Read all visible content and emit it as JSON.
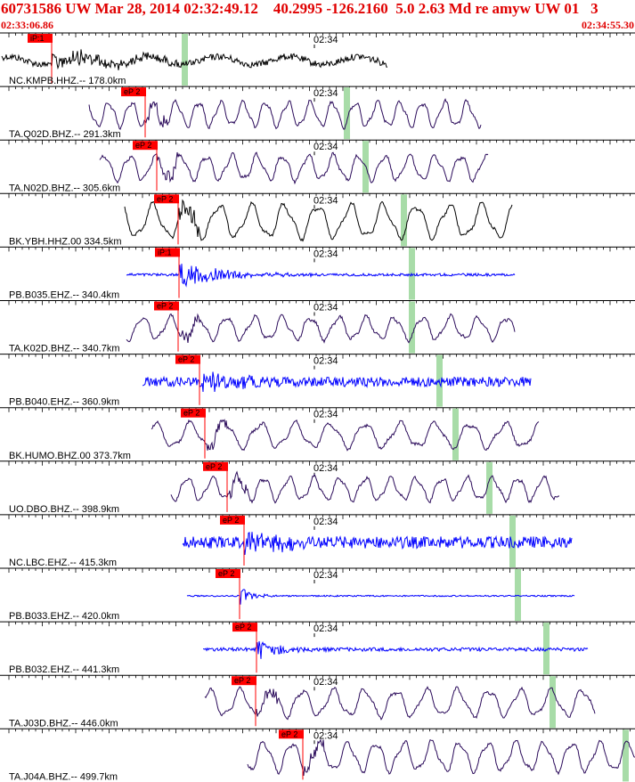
{
  "header": {
    "title": "60731586 UW Mar 28, 2014 02:32:49.12    40.2995 -126.2160  5.0 2.63 Md re amyw UW 01   3",
    "start_time": "02:33:06.86",
    "end_time": "02:34:55.30"
  },
  "colors": {
    "header_text": "#e00000",
    "trace_black": "#000000",
    "trace_blue": "#0000ff",
    "trace_purple": "#2a0a5a",
    "pick_flag": "#ff0000",
    "window_green": "#a8dca8"
  },
  "time_mark": "02:34",
  "traces": [
    {
      "label": "NC.KMPB.HHZ.-- 178.0km",
      "pick": "iP:1",
      "color": "black",
      "pick_x": 58,
      "green_x": 207,
      "start": 2,
      "end": 435,
      "amp": 0.55,
      "freq": 0.9,
      "style": "noisy"
    },
    {
      "label": "TA.Q02D.BHZ.-- 291.3km",
      "pick": "eP 2",
      "color": "purple",
      "pick_x": 163,
      "green_x": 389,
      "start": 100,
      "end": 540,
      "amp": 0.6,
      "freq": 0.25,
      "style": "wave"
    },
    {
      "label": "TA.N02D.BHZ.-- 305.6km",
      "pick": "eP 2",
      "color": "purple",
      "pick_x": 176,
      "green_x": 410,
      "start": 112,
      "end": 548,
      "amp": 0.6,
      "freq": 0.22,
      "style": "wave"
    },
    {
      "label": "BK.YBH.HHZ.00 334.5km",
      "pick": "eP 2",
      "color": "black",
      "pick_x": 200,
      "green_x": 453,
      "start": 140,
      "end": 575,
      "amp": 0.8,
      "freq": 0.17,
      "style": "wave"
    },
    {
      "label": "PB.B035.EHZ.-- 340.4km",
      "pick": "iP:1",
      "color": "blue",
      "pick_x": 201,
      "green_x": 462,
      "start": 142,
      "end": 578,
      "amp": 0.5,
      "freq": 0.8,
      "style": "burst"
    },
    {
      "label": "TA.K02D.BHZ.-- 340.7km",
      "pick": "eP 2",
      "color": "purple",
      "pick_x": 200,
      "green_x": 462,
      "start": 142,
      "end": 578,
      "amp": 0.55,
      "freq": 0.2,
      "style": "wave"
    },
    {
      "label": "PB.B040.EHZ.-- 360.9km",
      "pick": "eP 2",
      "color": "blue",
      "pick_x": 224,
      "green_x": 493,
      "start": 160,
      "end": 596,
      "amp": 0.45,
      "freq": 0.9,
      "style": "dense"
    },
    {
      "label": "BK.HUMO.BHZ.00 373.7km",
      "pick": "eP 2",
      "color": "purple",
      "pick_x": 230,
      "green_x": 511,
      "start": 170,
      "end": 605,
      "amp": 0.6,
      "freq": 0.16,
      "style": "wave"
    },
    {
      "label": "UO.DBO.BHZ.-- 398.9km",
      "pick": "eP 2",
      "color": "purple",
      "pick_x": 255,
      "green_x": 549,
      "start": 192,
      "end": 628,
      "amp": 0.55,
      "freq": 0.22,
      "style": "wave"
    },
    {
      "label": "NC.LBC.EHZ.-- 415.3km",
      "pick": "eP 2",
      "color": "blue",
      "pick_x": 274,
      "green_x": 575,
      "start": 205,
      "end": 642,
      "amp": 0.55,
      "freq": 0.9,
      "style": "dense"
    },
    {
      "label": "PB.B033.EHZ.-- 420.0km",
      "pick": "eP 2",
      "color": "blue",
      "pick_x": 269,
      "green_x": 581,
      "start": 210,
      "end": 645,
      "amp": 0.45,
      "freq": 0.6,
      "style": "quiet"
    },
    {
      "label": "PB.B032.EHZ.-- 441.3km",
      "pick": "eP 2",
      "color": "blue",
      "pick_x": 288,
      "green_x": 613,
      "start": 228,
      "end": 660,
      "amp": 0.5,
      "freq": 0.6,
      "style": "quietburst"
    },
    {
      "label": "TA.J03D.BHZ.-- 446.0km",
      "pick": "eP 2",
      "color": "purple",
      "pick_x": 287,
      "green_x": 620,
      "start": 230,
      "end": 668,
      "amp": 0.65,
      "freq": 0.18,
      "style": "wave"
    },
    {
      "label": "TA.J04A.BHZ.-- 499.7km",
      "pick": "eP 2",
      "color": "purple",
      "pick_x": 340,
      "green_x": 702,
      "start": 278,
      "end": 713,
      "amp": 0.7,
      "freq": 0.2,
      "style": "wave"
    }
  ]
}
